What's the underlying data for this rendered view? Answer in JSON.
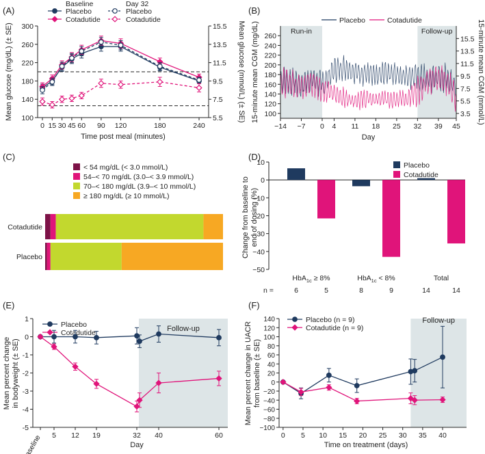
{
  "colors": {
    "placebo": "#1f3a5f",
    "cotadutide": "#e0147a",
    "shade": "#dde5e7",
    "dark_red": "#7d1247",
    "lime": "#c2d82e",
    "orange": "#f7a823"
  },
  "panel_labels": [
    "(A)",
    "(B)",
    "(C)",
    "(D)",
    "(E)",
    "(F)"
  ],
  "chart_data": [
    {
      "panel": "(A)",
      "type": "line",
      "legend_headers": [
        "Baseline",
        "Day 32"
      ],
      "series_labels": {
        "placebo": "Placebo",
        "cotadutide": "Cotadutide"
      },
      "xlabel": "Time post meal (minutes)",
      "ylabel": "Mean glucose (mg/dL) (± SE)",
      "ylabel_right": "Mean glucose (mmol/L) (± SE)",
      "x": [
        0,
        15,
        30,
        45,
        60,
        90,
        120,
        180,
        240
      ],
      "xlim": [
        0,
        240
      ],
      "ylim": [
        100,
        300
      ],
      "yticks": [
        100,
        140,
        180,
        220,
        260,
        300
      ],
      "yticks_right": [
        "5.5",
        "7.5",
        "9.5",
        "11.5",
        "13.5",
        "15.5"
      ],
      "hlines": [
        200,
        126
      ],
      "series": [
        {
          "key": "pb",
          "name": "Placebo (Baseline)",
          "color": "placebo",
          "dash": false,
          "marker": "circle",
          "values": [
            165,
            180,
            210,
            228,
            240,
            255,
            255,
            210,
            180
          ],
          "err": [
            8,
            8,
            9,
            10,
            10,
            10,
            10,
            8,
            6
          ]
        },
        {
          "key": "cb",
          "name": "Cotadutide (Baseline)",
          "color": "cotadutide",
          "dash": false,
          "marker": "diamond",
          "values": [
            168,
            185,
            215,
            232,
            248,
            268,
            262,
            222,
            188
          ],
          "err": [
            8,
            8,
            9,
            10,
            10,
            10,
            10,
            8,
            7
          ]
        },
        {
          "key": "pd",
          "name": "Placebo (Day 32)",
          "color": "placebo",
          "dash": true,
          "marker": "circle-open",
          "values": [
            160,
            178,
            212,
            230,
            245,
            265,
            258,
            212,
            182
          ],
          "err": [
            8,
            8,
            9,
            10,
            10,
            10,
            10,
            8,
            6
          ]
        },
        {
          "key": "cd",
          "name": "Cotadutide (Day 32)",
          "color": "cotadutide",
          "dash": true,
          "marker": "diamond-open",
          "values": [
            135,
            128,
            140,
            142,
            148,
            175,
            172,
            178,
            165
          ],
          "err": [
            8,
            7,
            7,
            7,
            7,
            9,
            8,
            10,
            9
          ]
        }
      ]
    },
    {
      "panel": "(B)",
      "type": "line",
      "legend": [
        "Placebo",
        "Cotadutide"
      ],
      "xlabel": "Day",
      "ylabel": "15-minute mean CGM (mg/dL)",
      "ylabel_right": "15-minute mean CGM (mmol/L)",
      "xticks": [
        -14,
        -7,
        0,
        4,
        11,
        18,
        25,
        32,
        39,
        45
      ],
      "xlim": [
        -14,
        45
      ],
      "ylim": [
        90,
        280
      ],
      "yticks": [
        100,
        120,
        140,
        160,
        180,
        200,
        220,
        240,
        260
      ],
      "yticks_right": [
        "3.5",
        "5.5",
        "7.5",
        "9.5",
        "11.5",
        "13.5",
        "15.5"
      ],
      "shaded_regions": [
        {
          "label": "Run-in",
          "from": -14,
          "to": 0
        },
        {
          "label": "Follow-up",
          "from": 32,
          "to": 45
        }
      ],
      "series": [
        {
          "name": "Placebo",
          "color": "placebo",
          "x": [
            -14,
            -10,
            -7,
            -3,
            0,
            4,
            8,
            11,
            15,
            18,
            22,
            25,
            29,
            32,
            36,
            39,
            42,
            45
          ],
          "mean": [
            165,
            168,
            160,
            170,
            160,
            190,
            195,
            185,
            182,
            175,
            185,
            180,
            178,
            175,
            170,
            175,
            172,
            160
          ],
          "amp": [
            25,
            25,
            25,
            25,
            25,
            22,
            22,
            22,
            22,
            22,
            22,
            22,
            22,
            25,
            25,
            25,
            25,
            25
          ]
        },
        {
          "name": "Cotadutide",
          "color": "cotadutide",
          "x": [
            -14,
            -10,
            -7,
            -3,
            0,
            4,
            8,
            11,
            15,
            18,
            22,
            25,
            29,
            32,
            36,
            39,
            42,
            45
          ],
          "mean": [
            165,
            160,
            158,
            162,
            150,
            140,
            130,
            128,
            130,
            128,
            130,
            132,
            130,
            145,
            170,
            175,
            165,
            130
          ],
          "amp": [
            25,
            25,
            25,
            25,
            25,
            18,
            18,
            18,
            18,
            18,
            18,
            18,
            18,
            25,
            25,
            25,
            25,
            28
          ]
        }
      ]
    },
    {
      "panel": "(C)",
      "type": "bar",
      "orientation": "horizontal",
      "stacked": true,
      "legend": [
        {
          "label": "< 54 mg/dL (< 3.0 mmol/L)",
          "color": "dark_red"
        },
        {
          "label": "54–< 70 mg/dL (3.0–< 3.9 mmol/L)",
          "color": "cotadutide"
        },
        {
          "label": "70–< 180 mg/dL (3.9–< 10 mmol/L)",
          "color": "lime"
        },
        {
          "label": "≥ 180 mg/dL (≥ 10 mmol/L)",
          "color": "orange"
        }
      ],
      "categories": [
        "Cotadutide",
        "Placebo"
      ],
      "series": [
        {
          "name": "< 54 mg/dL",
          "values": [
            3,
            1
          ]
        },
        {
          "name": "54–< 70 mg/dL",
          "values": [
            3,
            2
          ]
        },
        {
          "name": "70–< 180 mg/dL",
          "values": [
            83,
            40
          ]
        },
        {
          "name": "≥ 180 mg/dL",
          "values": [
            11,
            57
          ]
        }
      ]
    },
    {
      "panel": "(D)",
      "type": "bar",
      "legend": [
        "Placebo",
        "Cotadutide"
      ],
      "ylabel_lines": [
        "Change from baseline to",
        "end of dosing (%)"
      ],
      "ylim": [
        -50,
        10
      ],
      "yticks": [
        10,
        0,
        -10,
        -20,
        -30,
        -40,
        -50
      ],
      "categories": [
        "HbA1c ≥ 8%",
        "HbA1c < 8%",
        "Total"
      ],
      "category_parts": [
        {
          "pre": "HbA",
          "sub": "1c",
          "post": " ≥ 8%"
        },
        {
          "pre": "HbA",
          "sub": "1c",
          "post": " < 8%"
        },
        {
          "pre": "Total",
          "sub": "",
          "post": ""
        }
      ],
      "series": [
        {
          "name": "Placebo",
          "values": [
            6.5,
            -3.5,
            1
          ]
        },
        {
          "name": "Cotadutide",
          "values": [
            -21.5,
            -43,
            -35.5
          ]
        }
      ],
      "n_label": "n =",
      "n_values": [
        [
          "6",
          "5"
        ],
        [
          "8",
          "9"
        ],
        [
          "14",
          "14"
        ]
      ]
    },
    {
      "panel": "(E)",
      "type": "line",
      "legend": [
        "Placebo",
        "Cotadutide"
      ],
      "xlabel": "Day",
      "ylabel_lines": [
        "Mean percent change",
        "in bodyweight (± SE)"
      ],
      "xticks": [
        "Baseline",
        "5",
        "12",
        "19",
        "32",
        "40",
        "60"
      ],
      "ylim": [
        -5,
        1
      ],
      "yticks": [
        "1",
        "0",
        "-1",
        "-2",
        "-3",
        "-4",
        "-5"
      ],
      "shaded_regions": [
        {
          "label": "Follow-up",
          "from": 32,
          "to": 60
        }
      ],
      "series": [
        {
          "name": "Placebo",
          "color": "placebo",
          "x": [
            0,
            5,
            12,
            19,
            32,
            33,
            40,
            60
          ],
          "values": [
            0,
            0,
            0,
            -0.05,
            0.05,
            -0.25,
            0.15,
            -0.05
          ],
          "err": [
            0,
            0.35,
            0.35,
            0.35,
            0.45,
            0.35,
            0.45,
            0.45
          ]
        },
        {
          "name": "Cotadutide",
          "color": "cotadutide",
          "x": [
            0,
            5,
            12,
            19,
            32,
            33,
            40,
            60
          ],
          "values": [
            0,
            -0.55,
            -1.65,
            -2.6,
            -3.85,
            -3.5,
            -2.55,
            -2.3
          ],
          "err": [
            0,
            0.15,
            0.2,
            0.25,
            0.3,
            0.4,
            0.55,
            0.4
          ]
        }
      ]
    },
    {
      "panel": "(F)",
      "type": "line",
      "legend": [
        "Placebo (n = 9)",
        "Cotadutide (n = 9)"
      ],
      "xlabel": "Time on treatment (days)",
      "ylabel_lines": [
        "Mean percent change in UACR",
        "from baseline (± SE)"
      ],
      "xticks": [
        0,
        5,
        10,
        15,
        20,
        25,
        30,
        35,
        40
      ],
      "xlim": [
        -1,
        46
      ],
      "ylim": [
        -100,
        140
      ],
      "yticks": [
        140,
        120,
        100,
        80,
        60,
        40,
        20,
        0,
        -20,
        -40,
        -60,
        -80,
        -100
      ],
      "shaded_regions": [
        {
          "label": "Follow-up",
          "from": 32,
          "to": 46
        }
      ],
      "series": [
        {
          "name": "Placebo (n = 9)",
          "color": "placebo",
          "x": [
            0,
            4.5,
            11.5,
            18.5,
            32,
            33,
            40
          ],
          "values": [
            0,
            -25,
            15,
            -8,
            23,
            25,
            55
          ],
          "err": [
            0,
            12,
            15,
            15,
            28,
            25,
            68
          ]
        },
        {
          "name": "Cotadutide (n = 9)",
          "color": "cotadutide",
          "x": [
            0,
            4.5,
            11.5,
            18.5,
            32,
            33,
            40
          ],
          "values": [
            0,
            -22,
            -12,
            -42,
            -36,
            -40,
            -39
          ],
          "err": [
            0,
            8,
            6,
            6,
            12,
            10,
            6
          ]
        }
      ]
    }
  ]
}
